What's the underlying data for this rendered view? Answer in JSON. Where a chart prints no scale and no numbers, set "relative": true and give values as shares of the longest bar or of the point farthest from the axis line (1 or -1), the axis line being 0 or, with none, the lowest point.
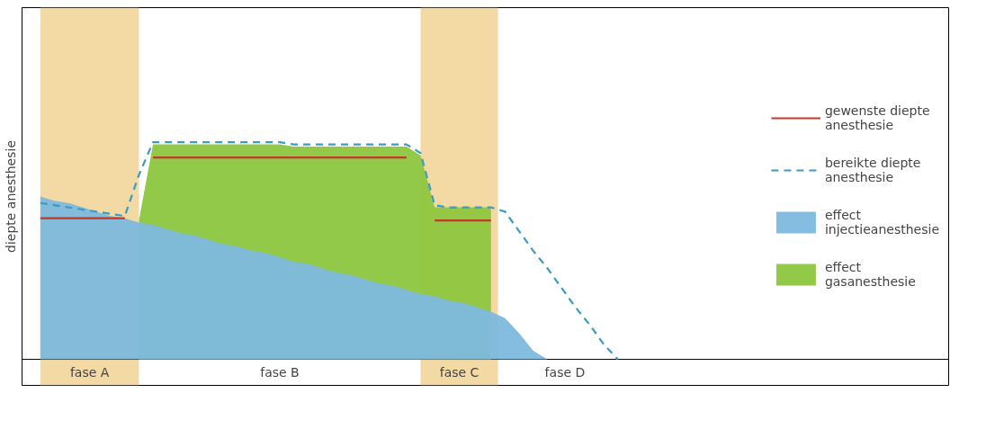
{
  "chart_data": {
    "type": "area",
    "relative": true,
    "ylabel": "diepte anesthesie",
    "tick_labels": false,
    "legend": "right",
    "categories": [
      null,
      null,
      null,
      null,
      null,
      null,
      null,
      null,
      null,
      null,
      null,
      null,
      null,
      null,
      null,
      null,
      null,
      null,
      null,
      null,
      null,
      null,
      null,
      null,
      null,
      null,
      null,
      null,
      null,
      null,
      null,
      null,
      null,
      null,
      null,
      null,
      null,
      null,
      null,
      null,
      null,
      null,
      null
    ],
    "series": [
      {
        "name": "gewenste diepte anesthesie",
        "type": "line",
        "color": "#c0392b",
        "line_style": "solid",
        "values": [
          0.65,
          0.65,
          0.65,
          0.65,
          0.65,
          0.65,
          0.65,
          null,
          0.93,
          0.93,
          0.93,
          0.93,
          0.93,
          0.93,
          0.93,
          0.93,
          0.93,
          0.93,
          0.93,
          0.93,
          0.93,
          0.93,
          0.93,
          0.93,
          0.93,
          0.93,
          0.93,
          null,
          0.64,
          0.64,
          0.64,
          0.64,
          0.64,
          null,
          null,
          null,
          null,
          null,
          null,
          null,
          null,
          null,
          null
        ]
      },
      {
        "name": "bereikte diepte anesthesie",
        "type": "line",
        "color": "#3a9cc4",
        "line_style": "dashed",
        "values": [
          0.72,
          0.71,
          0.7,
          0.69,
          0.68,
          0.67,
          0.66,
          0.85,
          1.0,
          1.0,
          1.0,
          1.0,
          1.0,
          1.0,
          1.0,
          1.0,
          1.0,
          1.0,
          0.99,
          0.99,
          0.99,
          0.99,
          0.99,
          0.99,
          0.99,
          0.99,
          0.99,
          0.95,
          0.71,
          0.7,
          0.7,
          0.7,
          0.7,
          0.68,
          0.59,
          0.5,
          0.42,
          0.33,
          0.24,
          0.16,
          0.07,
          0,
          null
        ]
      },
      {
        "name": "effect injectieanesthesie",
        "color": "#7db9de",
        "values": [
          0.75,
          0.73,
          0.72,
          0.7,
          0.68,
          0.66,
          0.65,
          0.63,
          0.62,
          0.6,
          0.58,
          0.57,
          0.55,
          0.53,
          0.52,
          0.5,
          0.49,
          0.47,
          0.45,
          0.44,
          0.42,
          0.4,
          0.39,
          0.37,
          0.35,
          0.34,
          0.32,
          0.3,
          0.29,
          0.27,
          0.26,
          0.24,
          0.22,
          0.19,
          0.12,
          0.04,
          0,
          null,
          null,
          null,
          null,
          null,
          null
        ]
      },
      {
        "name": "effect gasanesthesie",
        "color": "#8dc63f",
        "values": [
          null,
          null,
          null,
          null,
          null,
          null,
          null,
          0.64,
          0.99,
          0.99,
          0.99,
          0.99,
          0.99,
          0.99,
          0.99,
          0.99,
          0.99,
          0.99,
          0.98,
          0.98,
          0.98,
          0.98,
          0.98,
          0.98,
          0.98,
          0.98,
          0.98,
          0.94,
          0.7,
          0.7,
          0.7,
          0.7,
          0.7,
          null,
          null,
          null,
          null,
          null,
          null,
          null,
          null,
          null,
          null
        ]
      }
    ],
    "annotations": [
      "fase A",
      "fase B",
      "fase C",
      "fase D"
    ]
  }
}
